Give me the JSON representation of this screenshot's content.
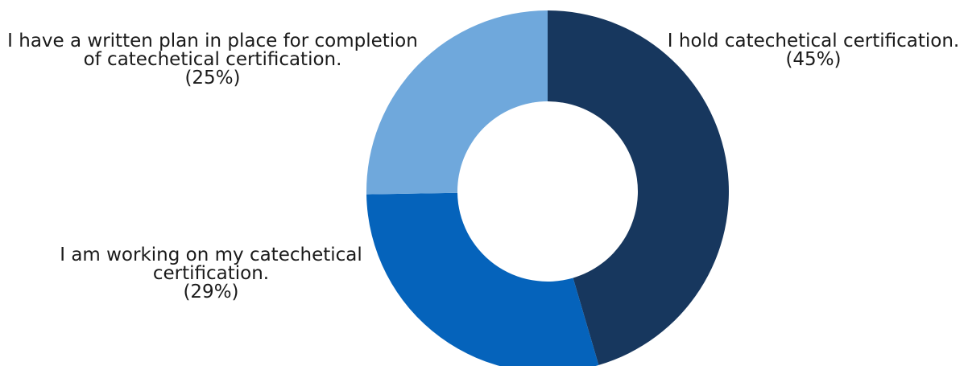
{
  "chart_data": {
    "type": "pie",
    "style": "donut",
    "title": "",
    "categories": [
      "I hold catechetical certification.",
      "I am working on my catechetical certification.",
      "I have a written plan in place for completion of catechetical certification."
    ],
    "values": [
      45,
      29,
      25
    ],
    "value_labels": [
      "(45%)",
      "(29%)",
      "(25%)"
    ],
    "colors": [
      "#17375E",
      "#0563BB",
      "#6FA8DC"
    ],
    "label_lines": [
      [
        "I hold catechetical certification.",
        "(45%)"
      ],
      [
        "I am working on my catechetical",
        "certification.",
        "(29%)"
      ],
      [
        "I have a written plan in place for completion",
        "of catechetical certification.",
        "(25%)"
      ]
    ],
    "legend": "none",
    "grid": false
  }
}
